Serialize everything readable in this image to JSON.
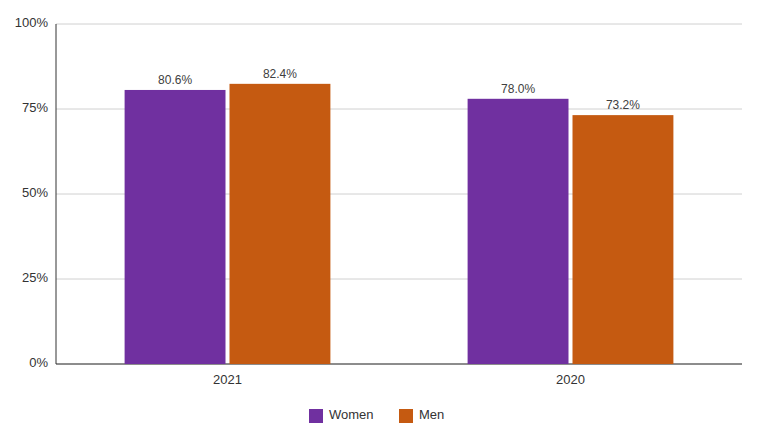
{
  "chart_data": {
    "type": "bar",
    "categories": [
      "2021",
      "2020"
    ],
    "series": [
      {
        "name": "Women",
        "color": "#7030A0",
        "values": [
          80.6,
          78.0
        ],
        "value_labels": [
          "80.6%",
          "78.0%"
        ]
      },
      {
        "name": "Men",
        "color": "#C55A11",
        "values": [
          82.4,
          73.2
        ],
        "value_labels": [
          "82.4%",
          "73.2%"
        ]
      }
    ],
    "ylim": [
      0,
      100
    ],
    "yticks": [
      {
        "value": 0,
        "label": "0%"
      },
      {
        "value": 25,
        "label": "25%"
      },
      {
        "value": 50,
        "label": "50%"
      },
      {
        "value": 75,
        "label": "75%"
      },
      {
        "value": 100,
        "label": "100%"
      }
    ],
    "grid": true,
    "legend": "bottom",
    "data_labels": true
  }
}
